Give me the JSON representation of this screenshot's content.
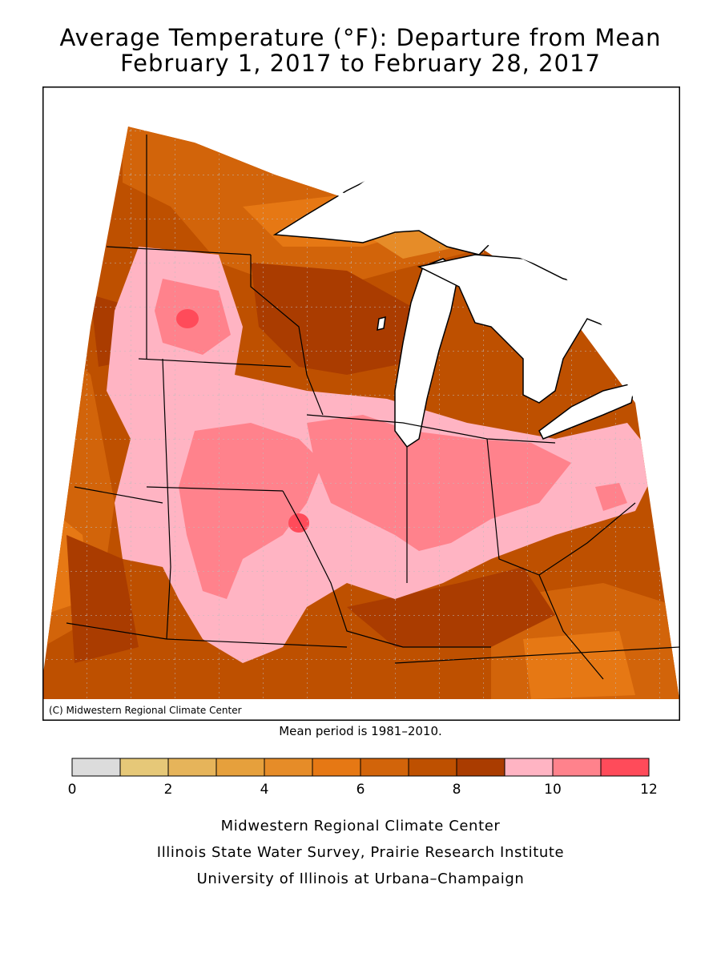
{
  "title": "Average Temperature (°F): Departure from Mean",
  "subtitle": "February 1, 2017 to February 28, 2017",
  "copyright": "(C) Midwestern Regional Climate Center",
  "mean_note": "Mean period is 1981–2010.",
  "legend": {
    "bins": [
      {
        "from": 0,
        "to": 1,
        "color": "#dcdcdc"
      },
      {
        "from": 1,
        "to": 2,
        "color": "#e6c878"
      },
      {
        "from": 2,
        "to": 3,
        "color": "#e6b45a"
      },
      {
        "from": 3,
        "to": 4,
        "color": "#e6a03c"
      },
      {
        "from": 4,
        "to": 5,
        "color": "#e68c28"
      },
      {
        "from": 5,
        "to": 6,
        "color": "#e67814"
      },
      {
        "from": 6,
        "to": 7,
        "color": "#d2640a"
      },
      {
        "from": 7,
        "to": 8,
        "color": "#be5000"
      },
      {
        "from": 8,
        "to": 9,
        "color": "#aa3c00"
      },
      {
        "from": 9,
        "to": 10,
        "color": "#ffb4c3"
      },
      {
        "from": 10,
        "to": 11,
        "color": "#ff828c"
      },
      {
        "from": 11,
        "to": 12,
        "color": "#ff4b5a"
      }
    ],
    "tick_labels": [
      "0",
      "2",
      "4",
      "6",
      "8",
      "10",
      "12"
    ]
  },
  "credits": [
    "Midwestern Regional Climate Center",
    "Illinois State Water Survey, Prairie Research Institute",
    "University of Illinois at Urbana–Champaign"
  ]
}
